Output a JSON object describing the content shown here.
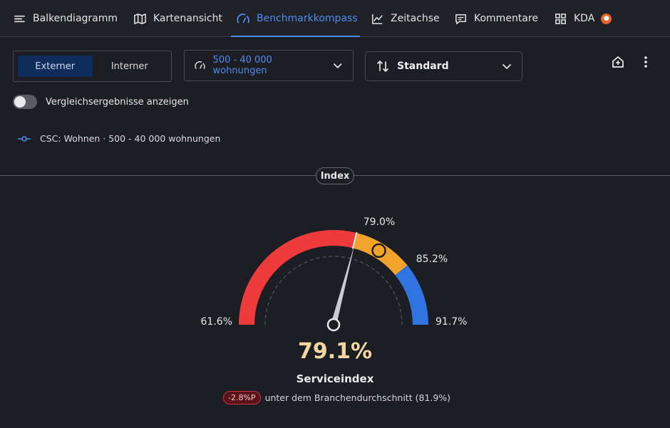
{
  "tabs": [
    {
      "label": "Balkendiagramm",
      "icon": "bars-icon"
    },
    {
      "label": "Kartenansicht",
      "icon": "map-icon"
    },
    {
      "label": "Benchmarkkompass",
      "icon": "gauge-icon",
      "active": true
    },
    {
      "label": "Zeitachse",
      "icon": "line-chart-icon"
    },
    {
      "label": "Kommentare",
      "icon": "comment-icon"
    },
    {
      "label": "KDA",
      "icon": "grid-icon",
      "badge": "●"
    }
  ],
  "segment": {
    "external": "Externer",
    "internal": "Interner",
    "selected": "Externer"
  },
  "range_dropdown": {
    "label": "500 - 40 000 wohnungen"
  },
  "sort_dropdown": {
    "label": "Standard"
  },
  "toggle": {
    "label": "Vergleichsergebnisse anzeigen",
    "on": false
  },
  "legend": {
    "label": "CSC: Wohnen · 500 - 40 000 wohnungen"
  },
  "section_pill": "Index",
  "gauge": {
    "min_label": "61.6%",
    "mark1_label": "79.0%",
    "mark2_label": "85.2%",
    "max_label": "91.7%",
    "min": 61.6,
    "mark1": 79.0,
    "mark2": 85.2,
    "max": 91.7,
    "value": 79.1,
    "benchmark": 81.9,
    "colors": {
      "red": "#ef3b3b",
      "amber": "#f0a42a",
      "blue": "#2f74e0"
    }
  },
  "value_text": "79.1%",
  "metric_name": "Serviceindex",
  "delta_badge": "-2.8%P",
  "compare_text": "unter dem Branchendurchschnitt (81.9%)"
}
